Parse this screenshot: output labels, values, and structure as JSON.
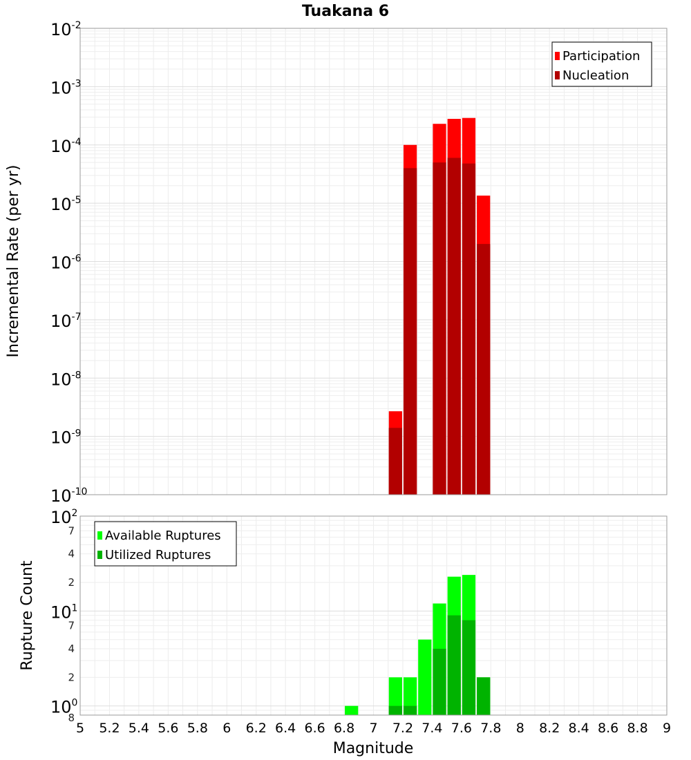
{
  "chart_data": [
    {
      "type": "bar",
      "title": "Tuakana 6",
      "xlabel": "",
      "ylabel": "Incremental Rate (per yr)",
      "yscale": "log",
      "xlim": [
        5,
        9
      ],
      "ylim": [
        1e-10,
        0.01
      ],
      "y_ticks": [
        {
          "base": "10",
          "exp": "-2"
        },
        {
          "base": "10",
          "exp": "-3"
        },
        {
          "base": "10",
          "exp": "-4"
        },
        {
          "base": "10",
          "exp": "-5"
        },
        {
          "base": "10",
          "exp": "-6"
        },
        {
          "base": "10",
          "exp": "-7"
        },
        {
          "base": "10",
          "exp": "-8"
        },
        {
          "base": "10",
          "exp": "-9"
        },
        {
          "base": "10",
          "exp": "-10"
        }
      ],
      "bin_width": 0.1,
      "grid": true,
      "legend_position": "top-right",
      "series": [
        {
          "name": "Participation",
          "color": "#ff0000",
          "x": [
            7.15,
            7.25,
            7.45,
            7.55,
            7.65,
            7.75
          ],
          "values": [
            2.7e-09,
            0.0001,
            0.00023,
            0.00028,
            0.00029,
            1.35e-05
          ]
        },
        {
          "name": "Nucleation",
          "color": "#b20000",
          "x": [
            7.15,
            7.25,
            7.45,
            7.55,
            7.65,
            7.75
          ],
          "values": [
            1.4e-09,
            4e-05,
            5e-05,
            6e-05,
            4.8e-05,
            2e-06
          ]
        }
      ]
    },
    {
      "type": "bar",
      "title": "",
      "xlabel": "Magnitude",
      "ylabel": "Rupture Count",
      "yscale": "log",
      "xlim": [
        5,
        9
      ],
      "ylim": [
        0.8,
        100
      ],
      "x_ticks": [
        "5",
        "5.2",
        "5.4",
        "5.6",
        "5.8",
        "6",
        "6.2",
        "6.4",
        "6.6",
        "6.8",
        "7",
        "7.2",
        "7.4",
        "7.6",
        "7.8",
        "8",
        "8.2",
        "8.4",
        "8.6",
        "8.8",
        "9"
      ],
      "y_ticks": [
        {
          "base": "10",
          "exp": "2"
        },
        {
          "base": "10",
          "exp": "1"
        },
        {
          "base": "10",
          "exp": "0"
        }
      ],
      "y_minor_labels": [
        {
          "label": "7",
          "value": 70
        },
        {
          "label": "4",
          "value": 40
        },
        {
          "label": "2",
          "value": 20
        },
        {
          "label": "7",
          "value": 7
        },
        {
          "label": "4",
          "value": 4
        },
        {
          "label": "2",
          "value": 2
        },
        {
          "label": "8",
          "value": 0.8
        }
      ],
      "bin_width": 0.1,
      "grid": true,
      "legend_position": "top-left",
      "series": [
        {
          "name": "Available Ruptures",
          "color": "#00ff00",
          "x": [
            6.85,
            7.15,
            7.25,
            7.35,
            7.45,
            7.55,
            7.65,
            7.75
          ],
          "values": [
            1,
            2,
            2,
            5,
            12,
            23,
            24,
            2
          ]
        },
        {
          "name": "Utilized Ruptures",
          "color": "#00b300",
          "x": [
            7.15,
            7.25,
            7.45,
            7.55,
            7.65,
            7.75
          ],
          "values": [
            1,
            1,
            4,
            9,
            8,
            2
          ]
        }
      ]
    }
  ]
}
